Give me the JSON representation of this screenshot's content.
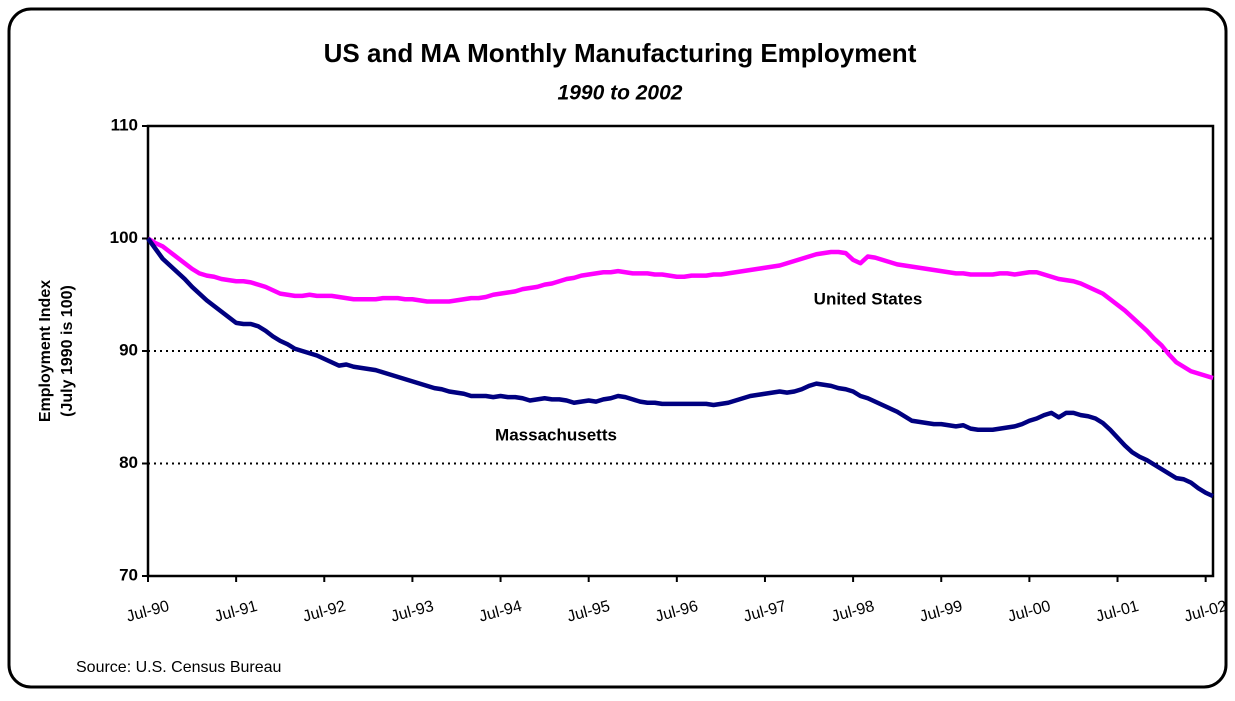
{
  "chart_data": {
    "type": "line",
    "title": "US and MA Monthly Manufacturing Employment",
    "subtitle": "1990 to 2002",
    "ylabel": [
      "Employment Index",
      "(July 1990 is 100)"
    ],
    "source": "Source:  U.S. Census Bureau",
    "ylim": [
      70,
      110
    ],
    "yticks": [
      70,
      80,
      90,
      100,
      110
    ],
    "grid": true,
    "categories": [
      "Jul-90",
      null,
      null,
      null,
      null,
      null,
      null,
      null,
      null,
      null,
      null,
      null,
      "Jul-91",
      null,
      null,
      null,
      null,
      null,
      null,
      null,
      null,
      null,
      null,
      null,
      "Jul-92",
      null,
      null,
      null,
      null,
      null,
      null,
      null,
      null,
      null,
      null,
      null,
      "Jul-93",
      null,
      null,
      null,
      null,
      null,
      null,
      null,
      null,
      null,
      null,
      null,
      "Jul-94",
      null,
      null,
      null,
      null,
      null,
      null,
      null,
      null,
      null,
      null,
      null,
      "Jul-95",
      null,
      null,
      null,
      null,
      null,
      null,
      null,
      null,
      null,
      null,
      null,
      "Jul-96",
      null,
      null,
      null,
      null,
      null,
      null,
      null,
      null,
      null,
      null,
      null,
      "Jul-97",
      null,
      null,
      null,
      null,
      null,
      null,
      null,
      null,
      null,
      null,
      null,
      "Jul-98",
      null,
      null,
      null,
      null,
      null,
      null,
      null,
      null,
      null,
      null,
      null,
      "Jul-99",
      null,
      null,
      null,
      null,
      null,
      null,
      null,
      null,
      null,
      null,
      null,
      "Jul-00",
      null,
      null,
      null,
      null,
      null,
      null,
      null,
      null,
      null,
      null,
      null,
      "Jul-01",
      null,
      null,
      null,
      null,
      null,
      null,
      null,
      null,
      null,
      null,
      null,
      "Jul-02",
      null
    ],
    "series": [
      {
        "name": "United States",
        "color": "#ff00ff",
        "values": [
          100,
          99.6,
          99.3,
          98.8,
          98.3,
          97.8,
          97.3,
          96.9,
          96.7,
          96.6,
          96.4,
          96.3,
          96.2,
          96.2,
          96.1,
          95.9,
          95.7,
          95.4,
          95.1,
          95.0,
          94.9,
          94.9,
          95.0,
          94.9,
          94.9,
          94.9,
          94.8,
          94.7,
          94.6,
          94.6,
          94.6,
          94.6,
          94.7,
          94.7,
          94.7,
          94.6,
          94.6,
          94.5,
          94.4,
          94.4,
          94.4,
          94.4,
          94.5,
          94.6,
          94.7,
          94.7,
          94.8,
          95.0,
          95.1,
          95.2,
          95.3,
          95.5,
          95.6,
          95.7,
          95.9,
          96.0,
          96.2,
          96.4,
          96.5,
          96.7,
          96.8,
          96.9,
          97.0,
          97.0,
          97.1,
          97.0,
          96.9,
          96.9,
          96.9,
          96.8,
          96.8,
          96.7,
          96.6,
          96.6,
          96.7,
          96.7,
          96.7,
          96.8,
          96.8,
          96.9,
          97.0,
          97.1,
          97.2,
          97.3,
          97.4,
          97.5,
          97.6,
          97.8,
          98.0,
          98.2,
          98.4,
          98.6,
          98.7,
          98.8,
          98.8,
          98.7,
          98.1,
          97.8,
          98.4,
          98.3,
          98.1,
          97.9,
          97.7,
          97.6,
          97.5,
          97.4,
          97.3,
          97.2,
          97.1,
          97.0,
          96.9,
          96.9,
          96.8,
          96.8,
          96.8,
          96.8,
          96.9,
          96.9,
          96.8,
          96.9,
          97.0,
          97.0,
          96.8,
          96.6,
          96.4,
          96.3,
          96.2,
          96.0,
          95.7,
          95.4,
          95.1,
          94.6,
          94.1,
          93.6,
          93.0,
          92.4,
          91.8,
          91.1,
          90.5,
          89.7,
          89.0,
          88.6,
          88.2,
          88.0,
          87.8,
          87.6
        ]
      },
      {
        "name": "Massachusetts",
        "color": "#000080",
        "values": [
          100,
          99.1,
          98.2,
          97.6,
          97.0,
          96.4,
          95.7,
          95.1,
          94.5,
          94.0,
          93.5,
          93.0,
          92.5,
          92.4,
          92.4,
          92.2,
          91.8,
          91.3,
          90.9,
          90.6,
          90.2,
          90.0,
          89.8,
          89.6,
          89.3,
          89.0,
          88.7,
          88.8,
          88.6,
          88.5,
          88.4,
          88.3,
          88.1,
          87.9,
          87.7,
          87.5,
          87.3,
          87.1,
          86.9,
          86.7,
          86.6,
          86.4,
          86.3,
          86.2,
          86.0,
          86.0,
          86.0,
          85.9,
          86.0,
          85.9,
          85.9,
          85.8,
          85.6,
          85.7,
          85.8,
          85.7,
          85.7,
          85.6,
          85.4,
          85.5,
          85.6,
          85.5,
          85.7,
          85.8,
          86.0,
          85.9,
          85.7,
          85.5,
          85.4,
          85.4,
          85.3,
          85.3,
          85.3,
          85.3,
          85.3,
          85.3,
          85.3,
          85.2,
          85.3,
          85.4,
          85.6,
          85.8,
          86.0,
          86.1,
          86.2,
          86.3,
          86.4,
          86.3,
          86.4,
          86.6,
          86.9,
          87.1,
          87.0,
          86.9,
          86.7,
          86.6,
          86.4,
          86.0,
          85.8,
          85.5,
          85.2,
          84.9,
          84.6,
          84.2,
          83.8,
          83.7,
          83.6,
          83.5,
          83.5,
          83.4,
          83.3,
          83.4,
          83.1,
          83.0,
          83.0,
          83.0,
          83.1,
          83.2,
          83.3,
          83.5,
          83.8,
          84.0,
          84.3,
          84.5,
          84.1,
          84.5,
          84.5,
          84.3,
          84.2,
          84.0,
          83.6,
          83.0,
          82.3,
          81.6,
          81.0,
          80.6,
          80.3,
          79.9,
          79.5,
          79.1,
          78.7,
          78.6,
          78.3,
          77.8,
          77.4,
          77.1
        ]
      }
    ]
  }
}
